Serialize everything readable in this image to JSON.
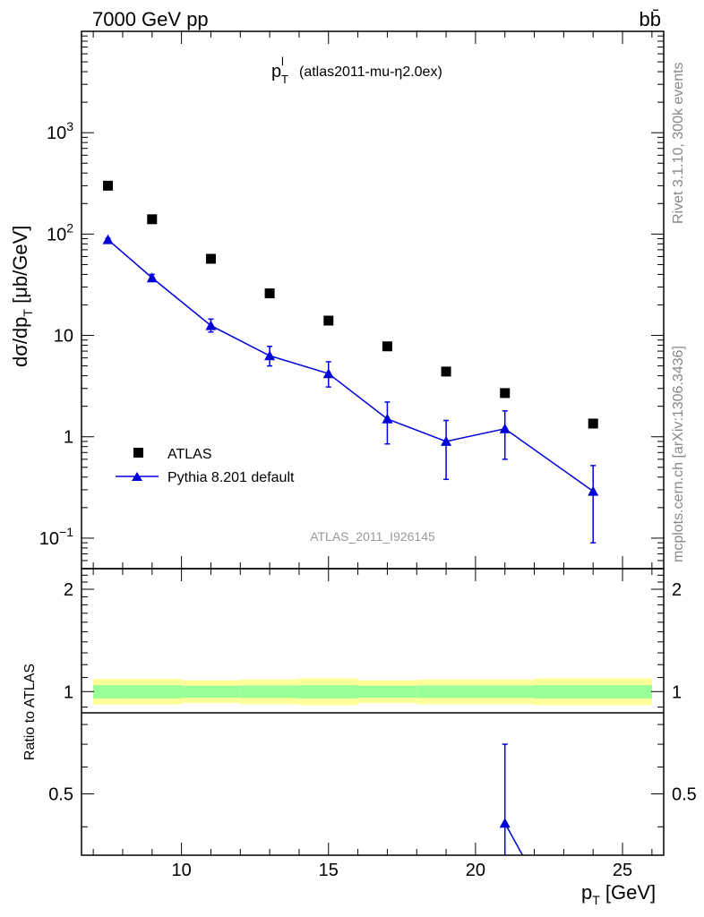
{
  "header": {
    "energy_label": "7000 GeV pp",
    "process_label": "bb̄",
    "plot_title": "p_T^l",
    "plot_subtitle": "(atlas2011-mu-η2.0ex)",
    "analysis_id": "ATLAS_2011_I926145",
    "side_top": "Rivet 3.1.10,  300k events",
    "side_bottom": "mcplots.cern.ch [arXiv:1306.3436]"
  },
  "chart_data": [
    {
      "type": "line",
      "xlabel": "p_T [GeV]",
      "ylabel": "dσ/dp_T [μb/GeV]",
      "xlim": [
        6.6,
        26.4
      ],
      "ylim": [
        0.05,
        10000
      ],
      "yscale": "log",
      "legend_position": "lower-left",
      "y_tick_labels": [
        "10^-1",
        "1",
        "10",
        "10^2",
        "10^3"
      ],
      "series": [
        {
          "name": "ATLAS",
          "marker": "square",
          "color": "#000000",
          "x": [
            7.5,
            9,
            11,
            13,
            15,
            17,
            19,
            21,
            24
          ],
          "y": [
            300,
            140,
            57,
            26,
            14,
            7.8,
            4.4,
            2.7,
            1.35
          ]
        },
        {
          "name": "Pythia 8.201 default",
          "marker": "triangle",
          "color": "#0000dd",
          "x": [
            7.5,
            9,
            11,
            13,
            15,
            17,
            19,
            21,
            24
          ],
          "y": [
            88,
            37,
            12.5,
            6.3,
            4.2,
            1.5,
            0.9,
            1.2,
            0.29
          ],
          "yerr_low": [
            85,
            34,
            10.8,
            5.0,
            3.1,
            0.85,
            0.38,
            0.6,
            0.09
          ],
          "yerr_high": [
            91,
            40,
            14.5,
            7.8,
            5.5,
            2.2,
            1.45,
            1.8,
            0.52
          ]
        }
      ]
    },
    {
      "type": "line",
      "xlabel": "p_T [GeV]",
      "ylabel": "Ratio to ATLAS",
      "xlim": [
        6.6,
        26.4
      ],
      "ylim": [
        0.33,
        2.3
      ],
      "yscale": "log",
      "x_tick_labels": [
        "10",
        "15",
        "20",
        "25"
      ],
      "y_tick_labels": [
        "0.5",
        "1",
        "2"
      ],
      "reference_band": {
        "x_edges": [
          7,
          8,
          10,
          12,
          14,
          16,
          18,
          20,
          22,
          26
        ],
        "inner_low": [
          0.955,
          0.955,
          0.96,
          0.958,
          0.955,
          0.96,
          0.958,
          0.958,
          0.955
        ],
        "inner_high": [
          1.045,
          1.045,
          1.04,
          1.042,
          1.045,
          1.04,
          1.042,
          1.042,
          1.045
        ],
        "outer_low": [
          0.915,
          0.915,
          0.925,
          0.918,
          0.912,
          0.925,
          0.918,
          0.918,
          0.912
        ],
        "outer_high": [
          1.09,
          1.09,
          1.08,
          1.085,
          1.095,
          1.08,
          1.085,
          1.085,
          1.095
        ],
        "inner_color": "#99ff99",
        "outer_color": "#ffff99"
      },
      "series": [
        {
          "name": "Pythia 8.201 default",
          "color": "#0000dd",
          "x": [
            21,
            21.6
          ],
          "y": [
            0.41,
            0.33
          ],
          "yerr_low": [
            0.33,
            0.33
          ],
          "yerr_high": [
            0.7,
            0.33
          ]
        }
      ]
    }
  ]
}
